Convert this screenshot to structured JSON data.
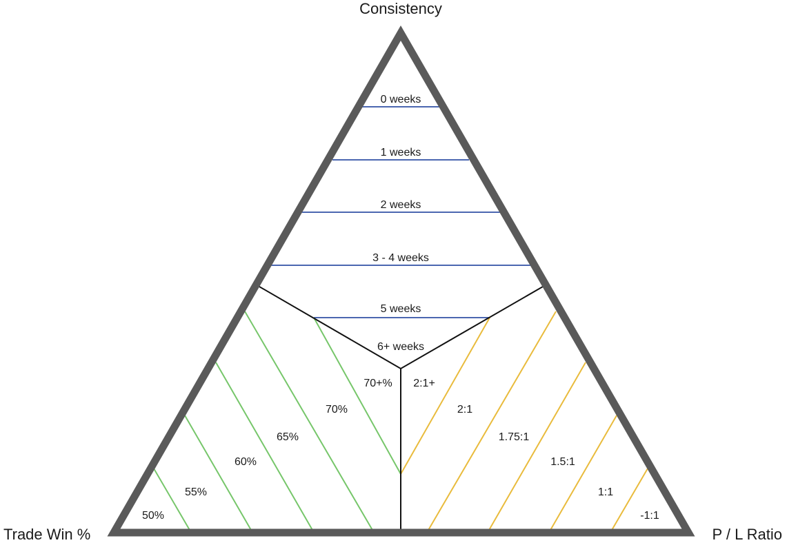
{
  "labels": {
    "top": "Consistency",
    "left": "Trade Win %",
    "right": "P / L Ratio"
  },
  "consistency_levels": [
    "0 weeks",
    "1 weeks",
    "2 weeks",
    "3 - 4 weeks",
    "5 weeks",
    "6+ weeks"
  ],
  "win_rate_levels": [
    "50%",
    "55%",
    "60%",
    "65%",
    "70%",
    "70+%"
  ],
  "pl_ratio_levels": [
    "2:1+",
    "2:1",
    "1.75:1",
    "1.5:1",
    "1:1",
    "-1:1"
  ],
  "colors": {
    "frame": "#5a5a5a",
    "dividers": "#111111",
    "consistency_lines": "#4a66b0",
    "win_rate_lines": "#76c66a",
    "pl_ratio_lines": "#e9bb3c"
  }
}
